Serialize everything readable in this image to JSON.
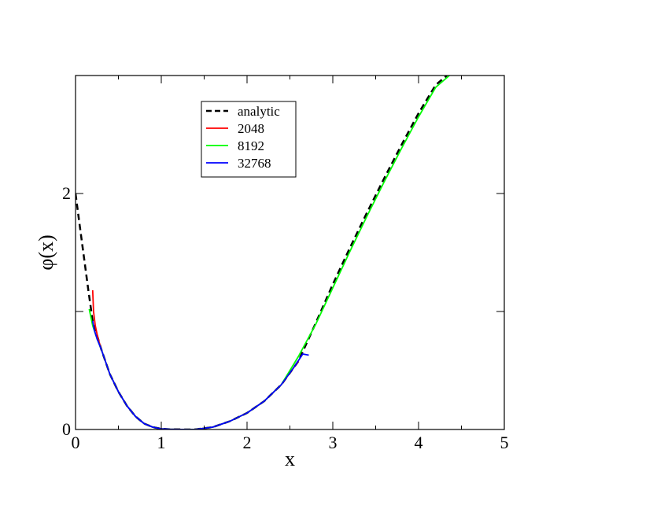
{
  "chart_data": {
    "type": "line",
    "xlabel": "x",
    "ylabel": "φ(x)",
    "xlim": [
      0,
      5
    ],
    "ylim": [
      0,
      3
    ],
    "x_ticks": [
      {
        "value": 0,
        "label": "0"
      },
      {
        "value": 1,
        "label": "1"
      },
      {
        "value": 2,
        "label": "2"
      },
      {
        "value": 3,
        "label": "3"
      },
      {
        "value": 4,
        "label": "4"
      },
      {
        "value": 5,
        "label": "5"
      }
    ],
    "y_ticks": [
      {
        "value": 0,
        "label": "0"
      },
      {
        "value": 1,
        "label": ""
      },
      {
        "value": 2,
        "label": "2"
      }
    ],
    "grid": false,
    "legend_position": "top-center",
    "series": [
      {
        "name": "analytic",
        "color": "#000000",
        "dash": "dashed",
        "x": [
          0.0,
          0.05,
          0.1,
          0.15,
          0.2,
          0.3,
          0.4,
          0.5,
          0.6,
          0.7,
          0.8,
          0.9,
          1.0,
          1.1,
          1.2,
          1.33,
          1.4,
          1.6,
          1.8,
          2.0,
          2.2,
          2.4,
          2.6,
          2.8,
          3.0,
          3.2,
          3.4,
          3.6,
          3.8,
          4.0,
          4.2,
          4.33
        ],
        "y": [
          2.0,
          1.72,
          1.45,
          1.18,
          0.92,
          0.68,
          0.47,
          0.32,
          0.2,
          0.11,
          0.05,
          0.02,
          0.006,
          0.002,
          0.0005,
          0.0,
          0.001,
          0.02,
          0.07,
          0.14,
          0.24,
          0.38,
          0.58,
          0.9,
          1.23,
          1.54,
          1.84,
          2.13,
          2.41,
          2.68,
          2.92,
          3.0
        ]
      },
      {
        "name": "2048",
        "color": "#ff0000",
        "dash": "solid",
        "x": [
          0.2,
          0.21,
          0.23,
          0.26,
          0.3,
          0.4,
          0.5,
          0.6,
          0.7,
          0.8,
          0.9,
          1.0,
          1.1,
          1.2,
          1.33,
          1.4,
          1.6,
          1.8,
          2.0,
          2.2,
          2.4,
          2.6
        ],
        "y": [
          1.18,
          1.0,
          0.88,
          0.78,
          0.68,
          0.47,
          0.32,
          0.2,
          0.11,
          0.05,
          0.02,
          0.006,
          0.002,
          0.0005,
          0.0,
          0.001,
          0.02,
          0.07,
          0.14,
          0.24,
          0.38,
          0.58
        ]
      },
      {
        "name": "8192",
        "color": "#00ff00",
        "dash": "solid",
        "x": [
          0.16,
          0.18,
          0.2,
          0.25,
          0.3,
          0.4,
          0.5,
          0.6,
          0.7,
          0.8,
          0.9,
          1.0,
          1.1,
          1.2,
          1.33,
          1.4,
          1.6,
          1.8,
          2.0,
          2.2,
          2.4,
          2.6,
          2.8,
          3.0,
          3.2,
          3.4,
          3.6,
          3.8,
          4.0,
          4.2,
          4.36
        ],
        "y": [
          1.02,
          0.95,
          0.88,
          0.77,
          0.68,
          0.47,
          0.32,
          0.2,
          0.11,
          0.05,
          0.02,
          0.006,
          0.002,
          0.0005,
          0.0,
          0.001,
          0.02,
          0.07,
          0.14,
          0.24,
          0.38,
          0.62,
          0.89,
          1.2,
          1.51,
          1.81,
          2.1,
          2.38,
          2.65,
          2.9,
          3.0
        ]
      },
      {
        "name": "32768",
        "color": "#0000ff",
        "dash": "solid",
        "x": [
          0.2,
          0.22,
          0.25,
          0.3,
          0.4,
          0.5,
          0.6,
          0.7,
          0.8,
          0.9,
          1.0,
          1.1,
          1.2,
          1.33,
          1.4,
          1.6,
          1.8,
          2.0,
          2.2,
          2.4,
          2.55,
          2.65,
          2.72
        ],
        "y": [
          0.92,
          0.84,
          0.77,
          0.68,
          0.47,
          0.32,
          0.2,
          0.11,
          0.05,
          0.02,
          0.006,
          0.002,
          0.0005,
          0.0,
          0.001,
          0.02,
          0.07,
          0.14,
          0.24,
          0.38,
          0.53,
          0.64,
          0.63
        ]
      }
    ]
  }
}
